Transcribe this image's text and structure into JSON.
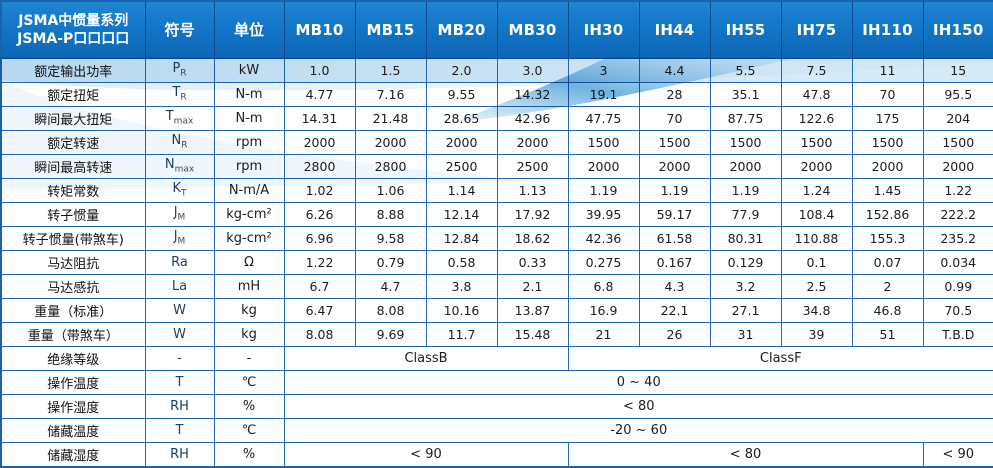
{
  "header": {
    "title_line1": "JSMA中惯量系列",
    "title_line2": "JSMA-P口口口口",
    "symbol_col": "符号",
    "unit_col": "单位",
    "models": [
      "MB10",
      "MB15",
      "MB20",
      "MB30",
      "IH30",
      "IH44",
      "IH55",
      "IH75",
      "IH110",
      "IH150"
    ]
  },
  "accent_colors": {
    "header_blue": "#1173c4",
    "grid_blue": "#2368ae",
    "tint_blue": "#d7eaf7",
    "swoosh_blue": "#55a5da"
  },
  "rows": [
    {
      "label": "额定输出功率",
      "sym": "P",
      "sub": "R",
      "unit": "kW",
      "values": [
        "1.0",
        "1.5",
        "2.0",
        "3.0",
        "3",
        "4.4",
        "5.5",
        "7.5",
        "11",
        "15"
      ]
    },
    {
      "label": "额定扭矩",
      "sym": "T",
      "sub": "R",
      "unit": "N-m",
      "values": [
        "4.77",
        "7.16",
        "9.55",
        "14.32",
        "19.1",
        "28",
        "35.1",
        "47.8",
        "70",
        "95.5"
      ]
    },
    {
      "label": "瞬间最大扭矩",
      "sym": "T",
      "sub": "max",
      "unit": "N-m",
      "values": [
        "14.31",
        "21.48",
        "28.65",
        "42.96",
        "47.75",
        "70",
        "87.75",
        "122.6",
        "175",
        "204"
      ]
    },
    {
      "label": "额定转速",
      "sym": "N",
      "sub": "R",
      "unit": "rpm",
      "values": [
        "2000",
        "2000",
        "2000",
        "2000",
        "1500",
        "1500",
        "1500",
        "1500",
        "1500",
        "1500"
      ]
    },
    {
      "label": "瞬间最高转速",
      "sym": "N",
      "sub": "max",
      "unit": "rpm",
      "values": [
        "2800",
        "2800",
        "2500",
        "2500",
        "2000",
        "2000",
        "2000",
        "2000",
        "2000",
        "2000"
      ]
    },
    {
      "label": "转矩常数",
      "sym": "K",
      "sub": "T",
      "unit": "N-m/A",
      "values": [
        "1.02",
        "1.06",
        "1.14",
        "1.13",
        "1.19",
        "1.19",
        "1.19",
        "1.24",
        "1.45",
        "1.22"
      ]
    },
    {
      "label": "转子惯量",
      "sym": "J",
      "sub": "M",
      "unit": "kg-cm²",
      "values": [
        "6.26",
        "8.88",
        "12.14",
        "17.92",
        "39.95",
        "59.17",
        "77.9",
        "108.4",
        "152.86",
        "222.2"
      ]
    },
    {
      "label": "转子惯量(带煞车)",
      "sym": "J",
      "sub": "M",
      "unit": "kg-cm²",
      "values": [
        "6.96",
        "9.58",
        "12.84",
        "18.62",
        "42.36",
        "61.58",
        "80.31",
        "110.88",
        "155.3",
        "235.2"
      ]
    },
    {
      "label": "马达阻抗",
      "sym": "Ra",
      "sub": "",
      "unit": "Ω",
      "values": [
        "1.22",
        "0.79",
        "0.58",
        "0.33",
        "0.275",
        "0.167",
        "0.129",
        "0.1",
        "0.07",
        "0.034"
      ]
    },
    {
      "label": "马达感抗",
      "sym": "La",
      "sub": "",
      "unit": "mH",
      "values": [
        "6.7",
        "4.7",
        "3.8",
        "2.1",
        "6.8",
        "4.3",
        "3.2",
        "2.5",
        "2",
        "0.99"
      ]
    },
    {
      "label": "重量（标准）",
      "sym": "W",
      "sub": "",
      "unit": "kg",
      "values": [
        "6.47",
        "8.08",
        "10.16",
        "13.87",
        "16.9",
        "22.1",
        "27.1",
        "34.8",
        "46.8",
        "70.5"
      ]
    },
    {
      "label": "重量（带煞车）",
      "sym": "W",
      "sub": "",
      "unit": "kg",
      "values": [
        "8.08",
        "9.69",
        "11.7",
        "15.48",
        "21",
        "26",
        "31",
        "39",
        "51",
        "T.B.D"
      ]
    },
    {
      "label": "绝缘等级",
      "sym": "-",
      "sub": "",
      "unit": "-",
      "merged": [
        {
          "text": "ClassB",
          "span": 4
        },
        {
          "text": "ClassF",
          "span": 6
        }
      ]
    },
    {
      "label": "操作温度",
      "sym": "T",
      "sub": "",
      "unit": "℃",
      "merged": [
        {
          "text": "0 ~ 40",
          "span": 10
        }
      ]
    },
    {
      "label": "操作湿度",
      "sym": "RH",
      "sub": "",
      "unit": "%",
      "merged": [
        {
          "text": "< 80",
          "span": 10
        }
      ]
    },
    {
      "label": "储藏温度",
      "sym": "T",
      "sub": "",
      "unit": "℃",
      "merged": [
        {
          "text": "-20 ~ 60",
          "span": 10
        }
      ]
    },
    {
      "label": "储藏湿度",
      "sym": "RH",
      "sub": "",
      "unit": "%",
      "merged": [
        {
          "text": "< 90",
          "span": 4
        },
        {
          "text": "< 80",
          "span": 5
        },
        {
          "text": "< 90",
          "span": 1
        }
      ]
    }
  ]
}
